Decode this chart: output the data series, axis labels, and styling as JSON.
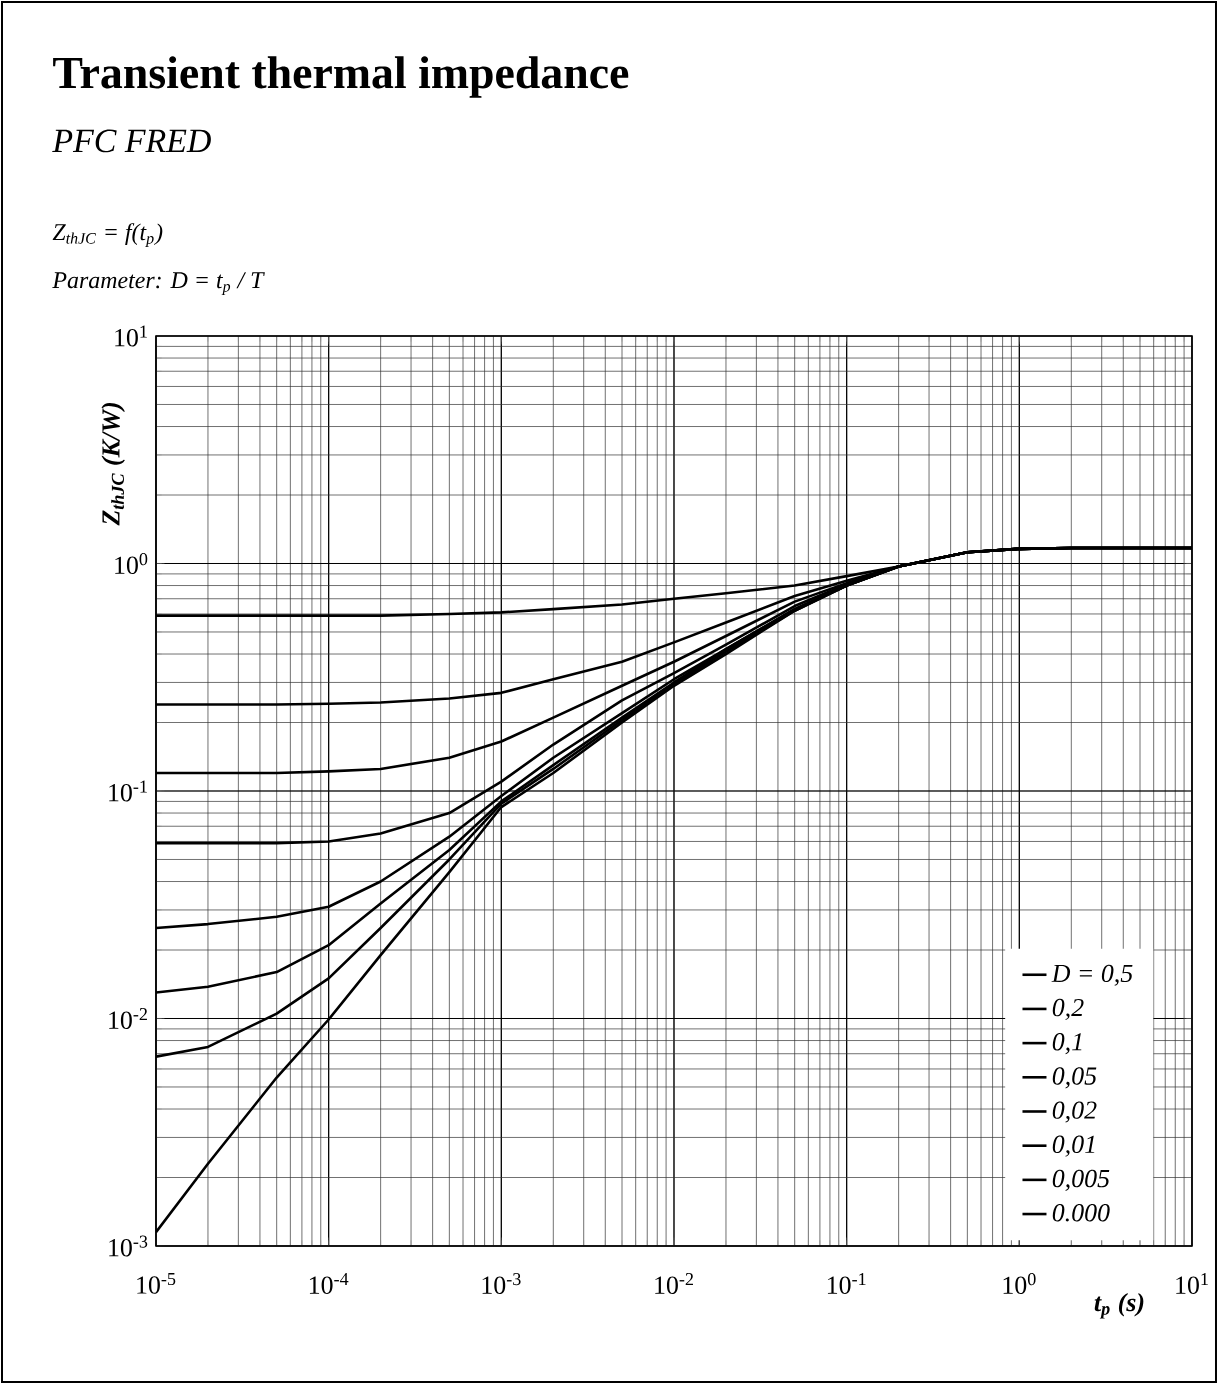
{
  "chart_data": {
    "type": "line",
    "title": "Transient thermal impedance",
    "subtitle": "PFC FRED",
    "annotations": [
      "Z$_{thJC}$ = f(t$_{p}$)",
      "Parameter: D = t$_{p}$ / T"
    ],
    "xlabel": "t$_{p}$ (s)",
    "ylabel": "Z$_{thJC}$ (K/W)",
    "log": "xy",
    "grid": true,
    "legend": "bottom right",
    "xlim": [
      1e-05,
      10
    ],
    "ylim": [
      0.001,
      10
    ],
    "xticks": [
      {
        "value": 1e-05,
        "label": "10$^{-5}$"
      },
      {
        "value": 0.0001,
        "label": "10$^{-4}$"
      },
      {
        "value": 0.001,
        "label": "10$^{-3}$"
      },
      {
        "value": 0.01,
        "label": "10$^{-2}$"
      },
      {
        "value": 0.1,
        "label": "10$^{-1}$"
      },
      {
        "value": 1,
        "label": "10$^{0}$"
      },
      {
        "value": 10,
        "label": "10$^{1}$"
      }
    ],
    "yticks": [
      {
        "value": 0.001,
        "label": "10$^{-3}$"
      },
      {
        "value": 0.01,
        "label": "10$^{-2}$"
      },
      {
        "value": 0.1,
        "label": "10$^{-1}$"
      },
      {
        "value": 1,
        "label": "10$^{0}$"
      },
      {
        "value": 10,
        "label": "10$^{1}$"
      }
    ],
    "x": [
      1e-05,
      2e-05,
      5e-05,
      0.0001,
      0.0002,
      0.0005,
      0.001,
      0.002,
      0.005,
      0.01,
      0.02,
      0.05,
      0.1,
      0.2,
      0.5,
      1,
      2,
      5,
      10
    ],
    "series": [
      {
        "name": "D = 0,5",
        "color": "#000000",
        "values": [
          0.59,
          0.59,
          0.59,
          0.59,
          0.59,
          0.6,
          0.61,
          0.63,
          0.66,
          0.7,
          0.74,
          0.8,
          0.88,
          0.97,
          1.12,
          1.16,
          1.17,
          1.17,
          1.17
        ]
      },
      {
        "name": "0,2",
        "color": "#000000",
        "values": [
          0.24,
          0.24,
          0.24,
          0.242,
          0.245,
          0.255,
          0.27,
          0.31,
          0.37,
          0.45,
          0.55,
          0.72,
          0.84,
          0.97,
          1.12,
          1.16,
          1.17,
          1.17,
          1.17
        ]
      },
      {
        "name": "0,1",
        "color": "#000000",
        "values": [
          0.12,
          0.12,
          0.12,
          0.122,
          0.125,
          0.14,
          0.165,
          0.21,
          0.29,
          0.37,
          0.48,
          0.68,
          0.82,
          0.97,
          1.12,
          1.16,
          1.17,
          1.17,
          1.17
        ]
      },
      {
        "name": "0,05",
        "color": "#000000",
        "values": [
          0.059,
          0.059,
          0.059,
          0.06,
          0.065,
          0.08,
          0.11,
          0.16,
          0.25,
          0.33,
          0.44,
          0.65,
          0.81,
          0.97,
          1.12,
          1.16,
          1.17,
          1.17,
          1.17
        ]
      },
      {
        "name": "0,02",
        "color": "#000000",
        "values": [
          0.025,
          0.026,
          0.028,
          0.031,
          0.04,
          0.063,
          0.095,
          0.14,
          0.22,
          0.31,
          0.42,
          0.63,
          0.8,
          0.97,
          1.12,
          1.16,
          1.17,
          1.17,
          1.17
        ]
      },
      {
        "name": "0,01",
        "color": "#000000",
        "values": [
          0.013,
          0.0138,
          0.016,
          0.021,
          0.032,
          0.055,
          0.09,
          0.13,
          0.21,
          0.3,
          0.42,
          0.63,
          0.8,
          0.97,
          1.12,
          1.16,
          1.17,
          1.17,
          1.17
        ]
      },
      {
        "name": "0,005",
        "color": "#000000",
        "values": [
          0.0068,
          0.0075,
          0.0105,
          0.015,
          0.025,
          0.05,
          0.088,
          0.125,
          0.205,
          0.295,
          0.41,
          0.62,
          0.8,
          0.97,
          1.12,
          1.16,
          1.17,
          1.17,
          1.17
        ]
      },
      {
        "name": "0.000",
        "color": "#000000",
        "values": [
          0.00115,
          0.0023,
          0.0055,
          0.0099,
          0.019,
          0.044,
          0.085,
          0.12,
          0.2,
          0.29,
          0.4,
          0.62,
          0.8,
          0.97,
          1.12,
          1.16,
          1.17,
          1.17,
          1.17
        ]
      }
    ]
  }
}
